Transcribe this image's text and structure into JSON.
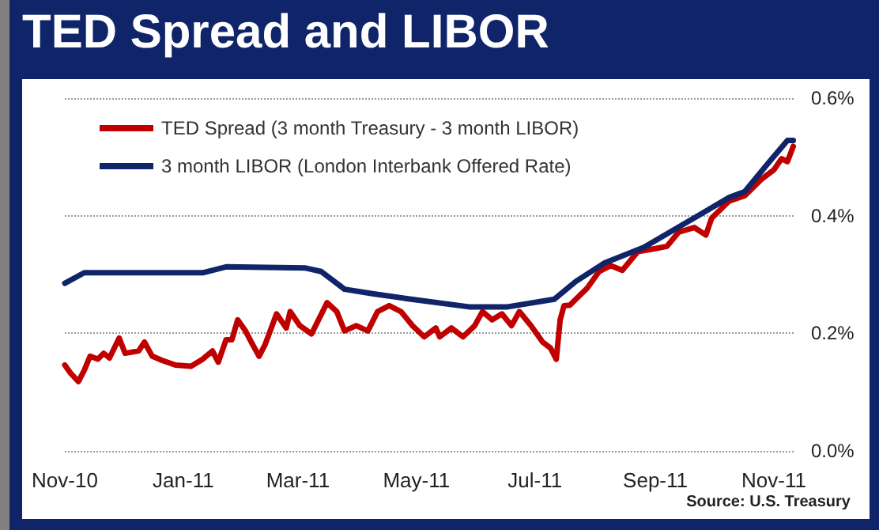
{
  "chart_data": {
    "type": "line",
    "title": "TED Spread and LIBOR",
    "annotations": [
      "Source:  U.S. Treasury"
    ],
    "series": [
      {
        "name": "TED Spread (3 month Treasury - 3 month LIBOR)",
        "color": "#c00000",
        "x": [
          "2010-11-01",
          "2010-11-04",
          "2010-11-08",
          "2010-11-11",
          "2010-11-14",
          "2010-11-18",
          "2010-11-21",
          "2010-11-24",
          "2010-11-29",
          "2010-12-02",
          "2010-12-09",
          "2010-12-12",
          "2010-12-16",
          "2010-12-21",
          "2010-12-28",
          "2011-01-05",
          "2011-01-11",
          "2011-01-16",
          "2011-01-19",
          "2011-01-23",
          "2011-01-26",
          "2011-01-29",
          "2011-02-02",
          "2011-02-05",
          "2011-02-09",
          "2011-02-12",
          "2011-02-18",
          "2011-02-23",
          "2011-02-25",
          "2011-03-02",
          "2011-03-08",
          "2011-03-16",
          "2011-03-21",
          "2011-03-25",
          "2011-03-31",
          "2011-04-06",
          "2011-04-11",
          "2011-04-17",
          "2011-04-23",
          "2011-04-29",
          "2011-05-05",
          "2011-05-11",
          "2011-05-13",
          "2011-05-19",
          "2011-05-25",
          "2011-05-31",
          "2011-06-04",
          "2011-06-09",
          "2011-06-14",
          "2011-06-19",
          "2011-06-23",
          "2011-06-29",
          "2011-07-05",
          "2011-07-09",
          "2011-07-12",
          "2011-07-14",
          "2011-07-16",
          "2011-07-19",
          "2011-07-28",
          "2011-08-03",
          "2011-08-09",
          "2011-08-15",
          "2011-08-23",
          "2011-09-01",
          "2011-09-07",
          "2011-09-13",
          "2011-09-21",
          "2011-09-27",
          "2011-09-30",
          "2011-10-09",
          "2011-10-17",
          "2011-10-26",
          "2011-11-01",
          "2011-11-05",
          "2011-11-08",
          "2011-11-11"
        ],
        "values": [
          0.146,
          0.132,
          0.118,
          0.137,
          0.161,
          0.156,
          0.166,
          0.158,
          0.192,
          0.166,
          0.17,
          0.185,
          0.161,
          0.154,
          0.146,
          0.144,
          0.156,
          0.17,
          0.151,
          0.189,
          0.189,
          0.223,
          0.204,
          0.185,
          0.161,
          0.18,
          0.233,
          0.209,
          0.237,
          0.213,
          0.199,
          0.252,
          0.237,
          0.204,
          0.213,
          0.204,
          0.237,
          0.247,
          0.237,
          0.213,
          0.194,
          0.209,
          0.194,
          0.209,
          0.194,
          0.213,
          0.237,
          0.223,
          0.233,
          0.213,
          0.237,
          0.213,
          0.185,
          0.175,
          0.156,
          0.223,
          0.247,
          0.248,
          0.277,
          0.305,
          0.315,
          0.307,
          0.339,
          0.344,
          0.348,
          0.372,
          0.38,
          0.367,
          0.396,
          0.425,
          0.434,
          0.463,
          0.478,
          0.497,
          0.492,
          0.518
        ]
      },
      {
        "name": "3 month LIBOR (London Interbank Offered Rate)",
        "color": "#0f2469",
        "x": [
          "2010-11-01",
          "2010-11-11",
          "2011-01-11",
          "2011-01-23",
          "2011-03-05",
          "2011-03-13",
          "2011-03-25",
          "2011-04-09",
          "2011-04-26",
          "2011-05-28",
          "2011-06-17",
          "2011-07-11",
          "2011-07-22",
          "2011-08-06",
          "2011-08-26",
          "2011-09-24",
          "2011-10-09",
          "2011-10-17",
          "2011-10-29",
          "2011-11-08",
          "2011-11-11"
        ],
        "values": [
          0.285,
          0.303,
          0.303,
          0.313,
          0.311,
          0.305,
          0.275,
          0.267,
          0.259,
          0.245,
          0.245,
          0.258,
          0.288,
          0.32,
          0.346,
          0.402,
          0.431,
          0.441,
          0.489,
          0.528,
          0.528
        ]
      }
    ],
    "xlim": [
      "2010-11-01",
      "2011-11-12"
    ],
    "xticks": [
      {
        "value": "2010-11-01",
        "label": "Nov-10"
      },
      {
        "value": "2011-01-01",
        "label": "Jan-11"
      },
      {
        "value": "2011-03-01",
        "label": "Mar-11"
      },
      {
        "value": "2011-05-01",
        "label": "May-11"
      },
      {
        "value": "2011-07-01",
        "label": "Jul-11"
      },
      {
        "value": "2011-09-01",
        "label": "Sep-11"
      },
      {
        "value": "2011-11-01",
        "label": "Nov-11"
      }
    ],
    "ylim": [
      0,
      0.6
    ],
    "yticks": [
      {
        "value": 0,
        "label": "0.0%"
      },
      {
        "value": 0.2,
        "label": "0.2%"
      },
      {
        "value": 0.4,
        "label": "0.4%"
      },
      {
        "value": 0.6,
        "label": "0.6%"
      }
    ],
    "grid": "y",
    "legend": "top left",
    "marker": "none",
    "line_style": "solid"
  }
}
